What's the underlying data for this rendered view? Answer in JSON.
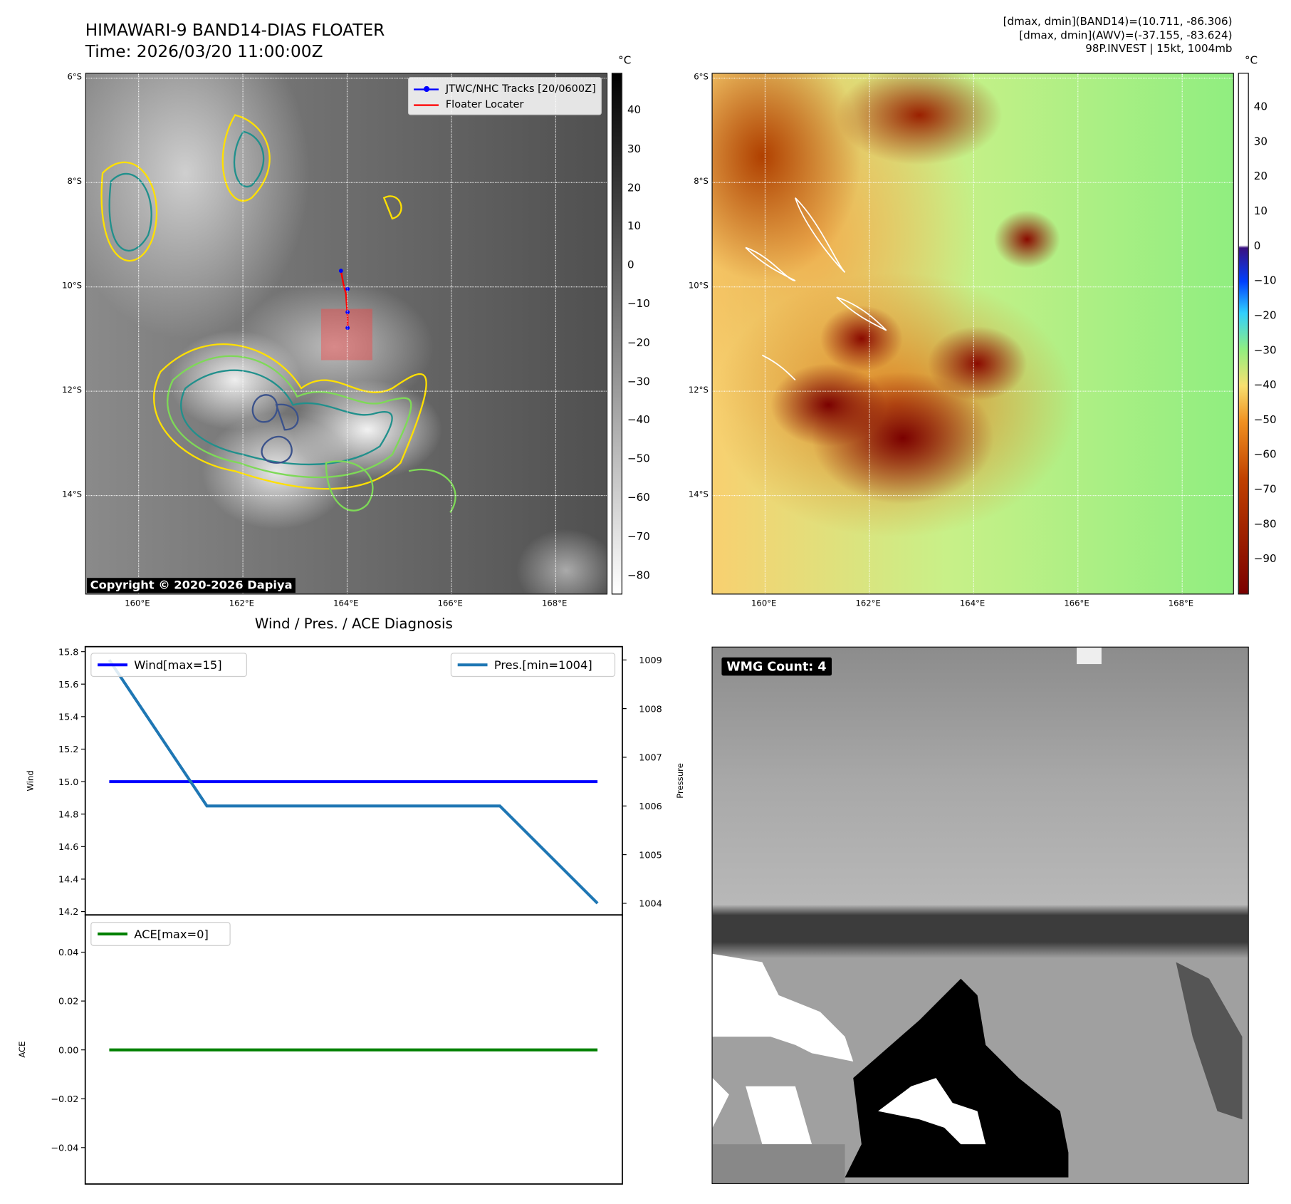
{
  "header": {
    "title": "HIMAWARI-9 BAND14-DIAS FLOATER",
    "time": "Time: 2026/03/20 11:00:00Z",
    "info": [
      "[dmax, dmin](BAND14)=(10.711, -86.306)",
      "[dmax, dmin](AWV)=(-37.155, -83.624)",
      "98P.INVEST | 15kt, 1004mb"
    ]
  },
  "maps": {
    "lat_labels": [
      "6°S",
      "8°S",
      "10°S",
      "12°S",
      "14°S"
    ],
    "lon_labels": [
      "160°E",
      "162°E",
      "164°E",
      "166°E",
      "168°E"
    ],
    "unit": "°C",
    "left_colorbar": [
      "40",
      "30",
      "20",
      "10",
      "0",
      "−10",
      "−20",
      "−30",
      "−40",
      "−50",
      "−60",
      "−70",
      "−80"
    ],
    "right_colorbar": [
      "40",
      "30",
      "20",
      "10",
      "0",
      "−10",
      "−20",
      "−30",
      "−40",
      "−50",
      "−60",
      "−70",
      "−80",
      "−90"
    ],
    "legend": [
      "JTWC/NHC Tracks [20/0600Z]",
      "Floater Locater"
    ],
    "copyright": "Copyright © 2020-2026 Dapiya",
    "track_color": "#0000ff",
    "locater_color": "#ff0000"
  },
  "wmg": {
    "label": "WMG Count: 4"
  },
  "chart_data": [
    {
      "type": "line",
      "title": "Wind / Pres. / ACE Diagnosis",
      "x": [
        0,
        1,
        2,
        3,
        4,
        5
      ],
      "series": [
        {
          "name": "Wind[max=15]",
          "axis": "left",
          "color": "#0000ff",
          "values": [
            15,
            15,
            15,
            15,
            15,
            15
          ]
        },
        {
          "name": "Pres.[min=1004]",
          "axis": "right",
          "color": "#1f77b4",
          "values": [
            1009,
            1006,
            1006,
            1006,
            1006,
            1004
          ]
        }
      ],
      "ylabel": "Wind",
      "ylim": [
        14.2,
        15.8
      ],
      "yticks": [
        "14.2",
        "14.4",
        "14.6",
        "14.8",
        "15.0",
        "15.2",
        "15.4",
        "15.6",
        "15.8"
      ],
      "y2label": "Pressure",
      "y2lim": [
        1003.85,
        1009.15
      ],
      "y2ticks": [
        "1004",
        "1005",
        "1006",
        "1007",
        "1008",
        "1009"
      ]
    },
    {
      "type": "line",
      "x": [
        0,
        1,
        2,
        3,
        4,
        5
      ],
      "series": [
        {
          "name": "ACE[max=0]",
          "color": "#008000",
          "values": [
            0,
            0,
            0,
            0,
            0,
            0
          ]
        }
      ],
      "ylabel": "ACE",
      "ylim": [
        -0.055,
        0.055
      ],
      "yticks": [
        "−0.04",
        "−0.02",
        "0.00",
        "0.02",
        "0.04"
      ]
    }
  ]
}
